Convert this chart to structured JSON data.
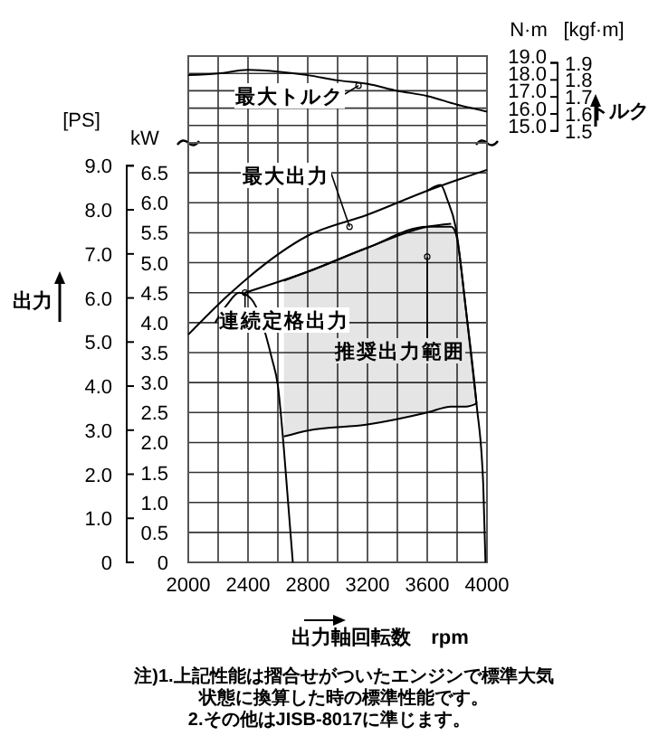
{
  "chart_data": [
    {
      "type": "line",
      "ylabel": "N·m",
      "y2label": "[kgf·m]",
      "tick_labels": "y",
      "grid": true,
      "xlim": [
        2000,
        4000
      ],
      "xticks": [
        2000,
        {
          "value": 2200,
          "label": null
        },
        2400,
        {
          "value": 2600,
          "label": null
        },
        2800,
        {
          "value": 3000,
          "label": null
        },
        3200,
        {
          "value": 3400,
          "label": null
        },
        3600,
        {
          "value": 3800,
          "label": null
        },
        4000
      ],
      "ylim": [
        14.0,
        19.0
      ],
      "yticks": [
        {
          "value": 15,
          "label": "15.0"
        },
        {
          "value": 16,
          "label": "16.0"
        },
        {
          "value": 17,
          "label": "17.0"
        },
        {
          "value": 18,
          "label": "18.0"
        },
        {
          "value": 19,
          "label": "19.0"
        }
      ],
      "y2lim": [
        1.43,
        1.94
      ],
      "y2ticks": [
        1.5,
        1.6,
        1.7,
        1.8,
        1.9
      ],
      "series": [
        {
          "color": "#000000",
          "x": [
            2000,
            2200,
            2400,
            2600,
            2800,
            3000,
            3200,
            3400,
            3600,
            3800,
            4000
          ],
          "values": [
            17.9,
            18.0,
            18.2,
            18.1,
            17.9,
            17.6,
            17.4,
            17.0,
            16.7,
            16.2,
            15.8
          ]
        }
      ],
      "annotations": [
        {
          "text": "最大トルク",
          "x": 3140,
          "y": 17.3
        },
        "トルク"
      ]
    },
    {
      "type": "line",
      "xlabel": "出力軸回転数　rpm",
      "ylabel": "kW",
      "y2label": "[PS]",
      "grid": true,
      "xlim": [
        2000,
        4000
      ],
      "xticks": [
        2000,
        {
          "value": 2200,
          "label": null
        },
        2400,
        {
          "value": 2600,
          "label": null
        },
        2800,
        {
          "value": 3000,
          "label": null
        },
        3200,
        {
          "value": 3400,
          "label": null
        },
        3600,
        {
          "value": 3800,
          "label": null
        },
        4000
      ],
      "ylim": [
        0,
        7.0
      ],
      "yticks": [
        0,
        0.5,
        {
          "value": 1,
          "label": "1.0"
        },
        1.5,
        {
          "value": 2,
          "label": "2.0"
        },
        2.5,
        {
          "value": 3,
          "label": "3.0"
        },
        3.5,
        {
          "value": 4,
          "label": "4.0"
        },
        4.5,
        {
          "value": 5,
          "label": "5.0"
        },
        5.5,
        {
          "value": 6,
          "label": "6.0"
        },
        6.5
      ],
      "y2lim": [
        0,
        9.52
      ],
      "y2ticks": [
        0,
        {
          "value": 1,
          "label": "1.0"
        },
        {
          "value": 2,
          "label": "2.0"
        },
        {
          "value": 3,
          "label": "3.0"
        },
        {
          "value": 4,
          "label": "4.0"
        },
        {
          "value": 5,
          "label": "5.0"
        },
        {
          "value": 6,
          "label": "6.0"
        },
        {
          "value": 7,
          "label": "7.0"
        },
        {
          "value": 8,
          "label": "8.0"
        },
        {
          "value": 9,
          "label": "9.0"
        }
      ],
      "series": [
        {
          "color": "#000000",
          "x": [
            2640,
            2800,
            3200,
            3600,
            3760,
            3790,
            3860,
            3930
          ],
          "values": [
            4.7,
            4.85,
            5.25,
            5.6,
            5.6,
            5.5,
            4.2,
            2.65
          ],
          "lower": [
            2.1,
            2.2,
            2.3,
            2.5,
            2.6,
            2.6,
            2.6,
            2.65
          ],
          "upper": [
            4.7,
            4.85,
            5.25,
            5.6,
            5.6,
            5.5,
            4.2,
            2.65
          ]
        },
        {
          "color": "#000000",
          "x": [
            2640,
            2800,
            3200,
            3600,
            3760,
            3790,
            3860,
            3930
          ],
          "values": [
            2.1,
            2.2,
            2.3,
            2.5,
            2.6,
            2.6,
            2.6,
            2.65
          ]
        },
        {
          "color": "#000000",
          "x": [
            2000,
            2200,
            2400,
            2800,
            3200,
            3600,
            4000
          ],
          "values": [
            3.8,
            4.3,
            4.75,
            5.45,
            5.8,
            6.2,
            6.55
          ]
        },
        {
          "color": "#000000",
          "x": [
            3600,
            3690,
            3735,
            3790,
            3860,
            3930,
            3975,
            3990
          ],
          "values": [
            6.2,
            6.3,
            6.05,
            5.6,
            4.2,
            2.65,
            1.3,
            0
          ]
        },
        {
          "color": "#000000",
          "x": [
            2380,
            2800,
            3200,
            3600,
            3760
          ],
          "values": [
            4.5,
            4.85,
            5.25,
            5.6,
            5.65
          ]
        },
        {
          "color": "#000000",
          "x": [
            2180,
            2260,
            2340,
            2420,
            2500,
            2560,
            2600,
            2640,
            2700
          ],
          "values": [
            4.0,
            4.3,
            4.5,
            4.4,
            null,
            3.4,
            2.95,
            1.9,
            0
          ]
        }
      ],
      "annotations": [
        {
          "text": "最大出力",
          "x": 3080,
          "y": 5.6
        },
        {
          "text": "連続定格出力",
          "x": 2380,
          "y": 4.5
        },
        {
          "text": "推奨出力範囲",
          "x": 3600,
          "y": 5.1
        },
        "出力",
        "注)1.上記性能は摺合せがついたエンジンで標準大気",
        "状態に換算した時の標準性能です。",
        "2.その他はJISB-8017に準じます。"
      ]
    }
  ]
}
